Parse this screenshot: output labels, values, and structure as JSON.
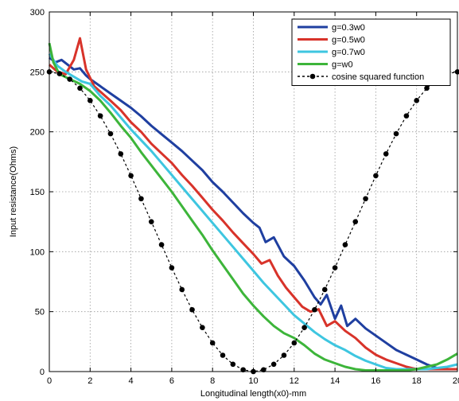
{
  "chart_data": {
    "type": "line",
    "title": "",
    "xlabel": "Longitudinal length(x0)-mm",
    "ylabel": "Input resistance(Ohms)",
    "xlim": [
      0,
      20
    ],
    "ylim": [
      0,
      300
    ],
    "xticks": [
      "0",
      "2",
      "4",
      "6",
      "8",
      "10",
      "12",
      "14",
      "16",
      "18",
      "20"
    ],
    "yticks": [
      "0",
      "50",
      "100",
      "150",
      "200",
      "250",
      "300"
    ],
    "grid": true,
    "legend_position": "top-right",
    "series": [
      {
        "name": "g=0.3w0",
        "color": "#1f3fa0",
        "style": "solid",
        "x": [
          0,
          0.3,
          0.6,
          0.9,
          1.2,
          1.5,
          1.8,
          2.0,
          2.5,
          3.0,
          3.5,
          4.0,
          4.5,
          5.0,
          5.5,
          6.0,
          6.5,
          7.0,
          7.5,
          8.0,
          8.5,
          9.0,
          9.5,
          10.0,
          10.3,
          10.6,
          11.0,
          11.5,
          12.0,
          12.5,
          13.0,
          13.3,
          13.6,
          14.0,
          14.3,
          14.6,
          15.0,
          15.5,
          16.0,
          16.5,
          17.0,
          17.5,
          18.0,
          18.5,
          19.0,
          19.5,
          20.0
        ],
        "y": [
          262,
          258,
          260,
          256,
          252,
          253,
          247,
          244,
          238,
          232,
          226,
          220,
          213,
          205,
          198,
          191,
          184,
          176,
          168,
          158,
          150,
          141,
          132,
          124,
          120,
          108,
          112,
          96,
          88,
          76,
          62,
          56,
          64,
          44,
          55,
          38,
          44,
          36,
          30,
          24,
          18,
          14,
          10,
          6,
          3,
          2,
          2
        ]
      },
      {
        "name": "g=0.5w0",
        "color": "#d8332a",
        "style": "solid",
        "x": [
          0,
          0.4,
          0.8,
          1.2,
          1.5,
          1.8,
          2.2,
          2.6,
          3.0,
          3.5,
          4.0,
          4.5,
          5.0,
          5.5,
          6.0,
          6.5,
          7.0,
          7.5,
          8.0,
          8.5,
          9.0,
          9.5,
          10.0,
          10.4,
          10.8,
          11.2,
          11.6,
          12.0,
          12.4,
          12.8,
          13.2,
          13.6,
          14.0,
          14.5,
          15.0,
          15.5,
          16.0,
          16.5,
          17.0,
          17.5,
          18.0,
          18.5,
          19.0,
          19.5,
          20.0
        ],
        "y": [
          256,
          250,
          248,
          260,
          278,
          252,
          238,
          232,
          226,
          218,
          208,
          200,
          190,
          182,
          174,
          164,
          155,
          145,
          135,
          126,
          116,
          107,
          98,
          90,
          93,
          80,
          70,
          62,
          54,
          50,
          52,
          38,
          42,
          34,
          28,
          20,
          14,
          10,
          7,
          4,
          2,
          2,
          2,
          2,
          2
        ]
      },
      {
        "name": "g=0.7w0",
        "color": "#3ec6e0",
        "style": "solid",
        "x": [
          0,
          0.4,
          0.8,
          1.2,
          1.6,
          2.0,
          2.5,
          3.0,
          3.5,
          4.0,
          4.5,
          5.0,
          5.5,
          6.0,
          6.5,
          7.0,
          7.5,
          8.0,
          8.5,
          9.0,
          9.5,
          10.0,
          10.5,
          11.0,
          11.5,
          12.0,
          12.5,
          13.0,
          13.5,
          14.0,
          14.5,
          15.0,
          15.5,
          16.0,
          16.5,
          17.0,
          17.5,
          18.0,
          18.5,
          19.0,
          19.5,
          20.0
        ],
        "y": [
          265,
          255,
          250,
          246,
          242,
          240,
          230,
          222,
          212,
          202,
          193,
          184,
          174,
          164,
          154,
          144,
          134,
          124,
          114,
          104,
          94,
          84,
          74,
          65,
          56,
          47,
          40,
          33,
          27,
          22,
          18,
          13,
          9,
          6,
          3,
          2,
          2,
          2,
          2,
          3,
          4,
          6
        ]
      },
      {
        "name": "g=w0",
        "color": "#3db53a",
        "style": "solid",
        "x": [
          0,
          0.2,
          0.5,
          1.0,
          1.5,
          2.0,
          2.5,
          3.0,
          3.5,
          4.0,
          4.5,
          5.0,
          5.5,
          6.0,
          6.5,
          7.0,
          7.5,
          8.0,
          8.5,
          9.0,
          9.5,
          10.0,
          10.5,
          11.0,
          11.5,
          12.0,
          12.5,
          13.0,
          13.5,
          14.0,
          14.5,
          15.0,
          15.5,
          16.0,
          16.5,
          17.0,
          17.5,
          18.0,
          18.5,
          19.0,
          19.5,
          20.0
        ],
        "y": [
          274,
          258,
          248,
          244,
          240,
          234,
          226,
          216,
          205,
          195,
          183,
          172,
          161,
          150,
          138,
          126,
          114,
          101,
          89,
          77,
          65,
          55,
          46,
          38,
          32,
          28,
          22,
          15,
          10,
          7,
          4,
          2,
          1,
          1,
          1,
          1,
          1,
          2,
          4,
          6,
          10,
          15
        ]
      },
      {
        "name": "cosine squared function",
        "color": "#000000",
        "style": "dotted-markers",
        "x": [
          0,
          0.5,
          1.0,
          1.5,
          2.0,
          2.5,
          3.0,
          3.5,
          4.0,
          4.5,
          5.0,
          5.5,
          6.0,
          6.5,
          7.0,
          7.5,
          8.0,
          8.5,
          9.0,
          9.5,
          10.0,
          10.5,
          11.0,
          11.5,
          12.0,
          12.5,
          13.0,
          13.5,
          14.0,
          14.5,
          15.0,
          15.5,
          16.0,
          16.5,
          17.0,
          17.5,
          18.0,
          18.5,
          19.0,
          19.5,
          20.0
        ],
        "y": [
          250,
          248.5,
          243.9,
          236.4,
          226.1,
          213.3,
          198.4,
          181.6,
          163.4,
          144.2,
          125.0,
          105.8,
          86.6,
          68.4,
          51.6,
          36.7,
          23.9,
          13.6,
          6.1,
          1.5,
          0,
          1.5,
          6.1,
          13.6,
          23.9,
          36.7,
          51.6,
          68.4,
          86.6,
          105.8,
          125.0,
          144.2,
          163.4,
          181.6,
          198.4,
          213.3,
          226.1,
          236.4,
          243.9,
          248.5,
          250
        ]
      }
    ]
  }
}
